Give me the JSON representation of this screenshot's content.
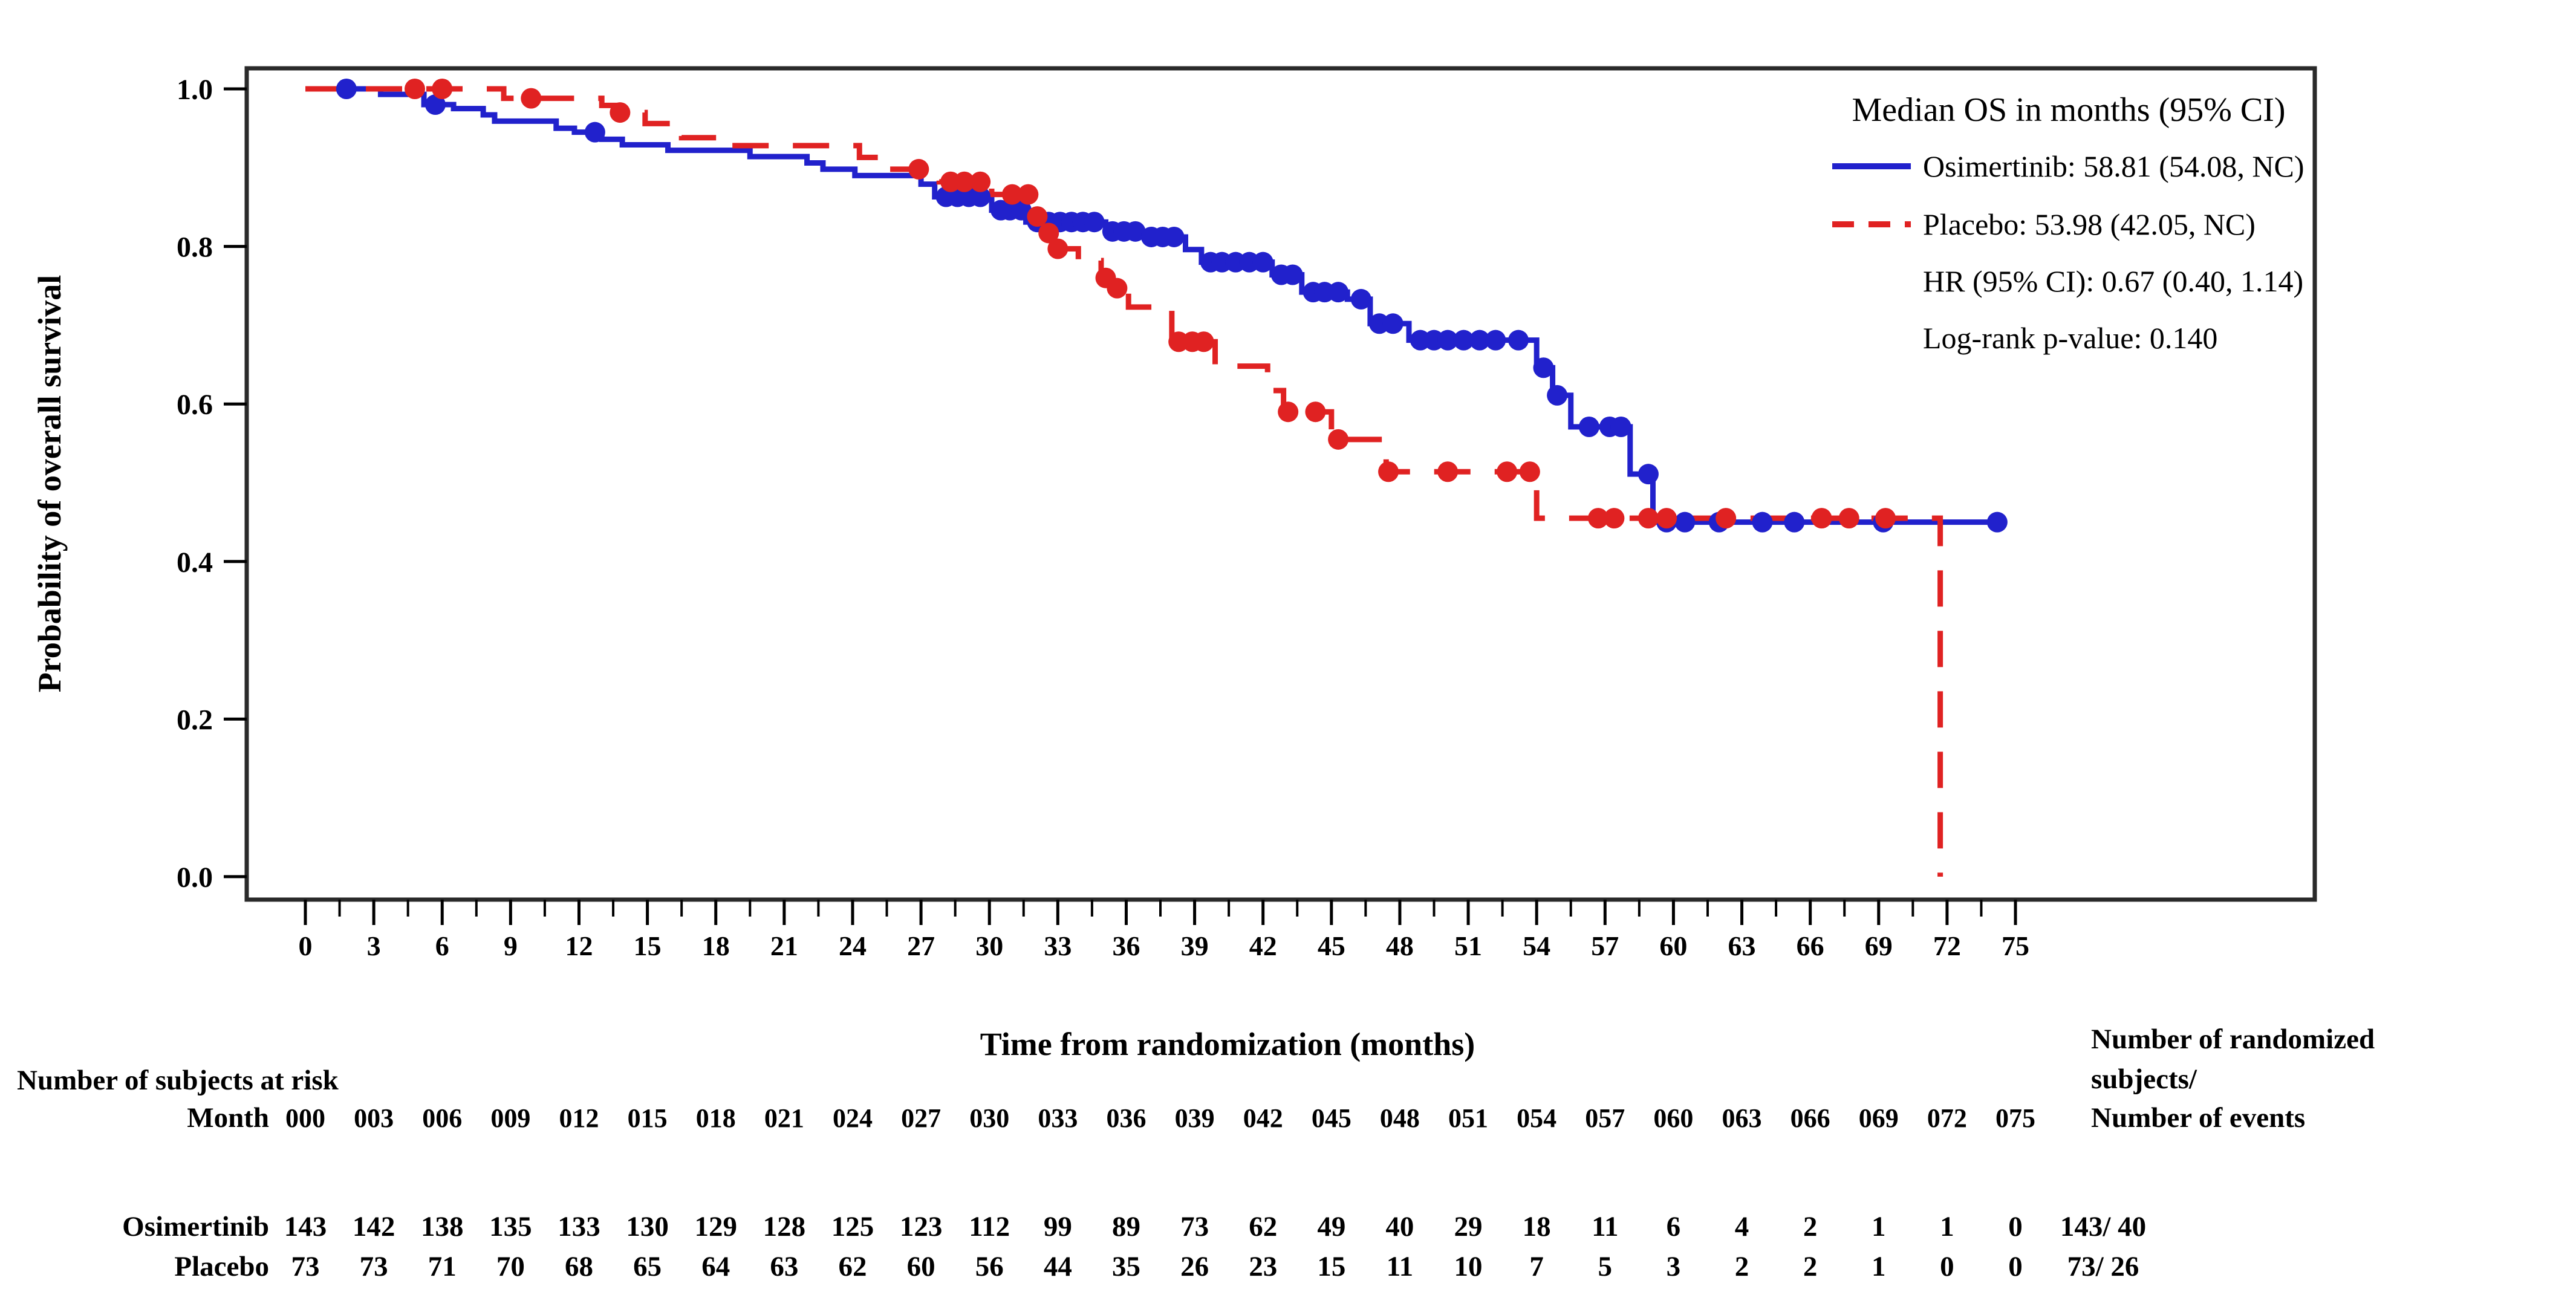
{
  "chart_data": {
    "type": "line",
    "subtype": "kaplan-meier-step",
    "legend_title": "Median OS in months (95% CI)",
    "xlabel": "Time from randomization (months)",
    "ylabel": "Probability of overall survival",
    "xlim": [
      0,
      77
    ],
    "ylim": [
      0,
      1
    ],
    "grid": false,
    "legend_position": "top-right-inside",
    "x_ticks": [
      {
        "v": 0,
        "label": "0"
      },
      {
        "v": 3,
        "label": "3"
      },
      {
        "v": 6,
        "label": "6"
      },
      {
        "v": 9,
        "label": "9"
      },
      {
        "v": 12,
        "label": "12"
      },
      {
        "v": 15,
        "label": "15"
      },
      {
        "v": 18,
        "label": "18"
      },
      {
        "v": 21,
        "label": "21"
      },
      {
        "v": 24,
        "label": "24"
      },
      {
        "v": 27,
        "label": "27"
      },
      {
        "v": 30,
        "label": "30"
      },
      {
        "v": 33,
        "label": "33"
      },
      {
        "v": 36,
        "label": "36"
      },
      {
        "v": 39,
        "label": "39"
      },
      {
        "v": 42,
        "label": "42"
      },
      {
        "v": 45,
        "label": "45"
      },
      {
        "v": 48,
        "label": "48"
      },
      {
        "v": 51,
        "label": "51"
      },
      {
        "v": 54,
        "label": "54"
      },
      {
        "v": 57,
        "label": "57"
      },
      {
        "v": 60,
        "label": "60"
      },
      {
        "v": 63,
        "label": "63"
      },
      {
        "v": 66,
        "label": "66"
      },
      {
        "v": 69,
        "label": "69"
      },
      {
        "v": 72,
        "label": "72"
      },
      {
        "v": 75,
        "label": "75"
      }
    ],
    "y_ticks": [
      {
        "v": 0.0,
        "label": "0.0"
      },
      {
        "v": 0.2,
        "label": "0.2"
      },
      {
        "v": 0.4,
        "label": "0.4"
      },
      {
        "v": 0.6,
        "label": "0.6"
      },
      {
        "v": 0.8,
        "label": "0.8"
      },
      {
        "v": 1.0,
        "label": "1.0"
      }
    ],
    "annotations": [
      "HR (95% CI): 0.67 (0.40, 1.14)",
      "Log-rank p-value: 0.140"
    ],
    "series": [
      {
        "name": "Osimertinib",
        "legend_label": "Osimertinib: 58.81 (54.08, NC)",
        "color": "#2121cc",
        "line_style": "solid",
        "end_month": 74.3,
        "drop_to_zero": false,
        "steps": [
          [
            0,
            1.0
          ],
          [
            3.3,
            0.993
          ],
          [
            5.2,
            0.98
          ],
          [
            6.5,
            0.975
          ],
          [
            7.8,
            0.967
          ],
          [
            8.3,
            0.959
          ],
          [
            11.0,
            0.95
          ],
          [
            11.8,
            0.945
          ],
          [
            13.0,
            0.936
          ],
          [
            13.9,
            0.929
          ],
          [
            15.9,
            0.922
          ],
          [
            19.5,
            0.914
          ],
          [
            22.0,
            0.906
          ],
          [
            22.7,
            0.898
          ],
          [
            24.1,
            0.89
          ],
          [
            27.0,
            0.879
          ],
          [
            27.6,
            0.863
          ],
          [
            30.1,
            0.846
          ],
          [
            31.6,
            0.831
          ],
          [
            35.1,
            0.819
          ],
          [
            36.8,
            0.812
          ],
          [
            38.6,
            0.796
          ],
          [
            39.3,
            0.78
          ],
          [
            42.4,
            0.764
          ],
          [
            43.7,
            0.742
          ],
          [
            45.7,
            0.733
          ],
          [
            46.7,
            0.702
          ],
          [
            48.4,
            0.681
          ],
          [
            54.0,
            0.646
          ],
          [
            54.7,
            0.611
          ],
          [
            55.5,
            0.571
          ],
          [
            58.1,
            0.511
          ],
          [
            59.1,
            0.45
          ]
        ],
        "censors": [
          [
            1.8,
            1.0
          ],
          [
            5.7,
            0.98
          ],
          [
            12.7,
            0.945
          ],
          [
            28.1,
            0.863
          ],
          [
            28.6,
            0.863
          ],
          [
            29.1,
            0.863
          ],
          [
            29.6,
            0.863
          ],
          [
            30.5,
            0.846
          ],
          [
            30.9,
            0.846
          ],
          [
            31.4,
            0.846
          ],
          [
            32.1,
            0.831
          ],
          [
            32.6,
            0.831
          ],
          [
            33.1,
            0.831
          ],
          [
            33.6,
            0.831
          ],
          [
            34.1,
            0.831
          ],
          [
            34.6,
            0.831
          ],
          [
            35.4,
            0.819
          ],
          [
            35.9,
            0.819
          ],
          [
            36.4,
            0.819
          ],
          [
            37.1,
            0.812
          ],
          [
            37.6,
            0.812
          ],
          [
            38.1,
            0.812
          ],
          [
            39.7,
            0.78
          ],
          [
            40.2,
            0.78
          ],
          [
            40.8,
            0.78
          ],
          [
            41.4,
            0.78
          ],
          [
            42.0,
            0.78
          ],
          [
            42.8,
            0.764
          ],
          [
            43.3,
            0.764
          ],
          [
            44.2,
            0.742
          ],
          [
            44.7,
            0.742
          ],
          [
            45.3,
            0.742
          ],
          [
            46.3,
            0.733
          ],
          [
            47.1,
            0.702
          ],
          [
            47.7,
            0.702
          ],
          [
            48.9,
            0.681
          ],
          [
            49.5,
            0.681
          ],
          [
            50.1,
            0.681
          ],
          [
            50.8,
            0.681
          ],
          [
            51.5,
            0.681
          ],
          [
            52.2,
            0.681
          ],
          [
            53.2,
            0.681
          ],
          [
            54.3,
            0.646
          ],
          [
            54.9,
            0.611
          ],
          [
            56.3,
            0.571
          ],
          [
            57.2,
            0.571
          ],
          [
            57.7,
            0.571
          ],
          [
            58.9,
            0.511
          ],
          [
            59.7,
            0.45
          ],
          [
            60.5,
            0.45
          ],
          [
            62.0,
            0.45
          ],
          [
            63.9,
            0.45
          ],
          [
            65.3,
            0.45
          ],
          [
            69.2,
            0.45
          ],
          [
            74.2,
            0.45
          ]
        ]
      },
      {
        "name": "Placebo",
        "legend_label": "Placebo: 53.98 (42.05, NC)",
        "color": "#e02222",
        "line_style": "dashed",
        "end_month": 71.7,
        "drop_to_zero": true,
        "steps": [
          [
            0,
            1.0
          ],
          [
            8.7,
            0.988
          ],
          [
            13.0,
            0.979
          ],
          [
            13.6,
            0.97
          ],
          [
            14.9,
            0.956
          ],
          [
            16.5,
            0.938
          ],
          [
            18.7,
            0.928
          ],
          [
            24.3,
            0.913
          ],
          [
            25.2,
            0.898
          ],
          [
            27.8,
            0.882
          ],
          [
            30.1,
            0.866
          ],
          [
            31.9,
            0.838
          ],
          [
            32.4,
            0.817
          ],
          [
            32.8,
            0.797
          ],
          [
            33.9,
            0.782
          ],
          [
            34.9,
            0.76
          ],
          [
            35.4,
            0.747
          ],
          [
            36.1,
            0.723
          ],
          [
            38.0,
            0.679
          ],
          [
            39.9,
            0.648
          ],
          [
            42.2,
            0.617
          ],
          [
            42.9,
            0.59
          ],
          [
            45.0,
            0.555
          ],
          [
            47.4,
            0.514
          ],
          [
            54.0,
            0.455
          ]
        ],
        "censors": [
          [
            4.8,
            1.0
          ],
          [
            6.0,
            1.0
          ],
          [
            9.9,
            0.988
          ],
          [
            13.8,
            0.97
          ],
          [
            26.9,
            0.898
          ],
          [
            28.3,
            0.882
          ],
          [
            28.9,
            0.882
          ],
          [
            29.6,
            0.882
          ],
          [
            31.0,
            0.866
          ],
          [
            31.7,
            0.866
          ],
          [
            32.1,
            0.838
          ],
          [
            32.6,
            0.817
          ],
          [
            33.0,
            0.797
          ],
          [
            35.1,
            0.76
          ],
          [
            35.6,
            0.747
          ],
          [
            38.3,
            0.679
          ],
          [
            38.9,
            0.679
          ],
          [
            39.4,
            0.679
          ],
          [
            43.1,
            0.59
          ],
          [
            44.3,
            0.59
          ],
          [
            45.3,
            0.555
          ],
          [
            47.5,
            0.514
          ],
          [
            50.1,
            0.514
          ],
          [
            52.7,
            0.514
          ],
          [
            53.7,
            0.514
          ],
          [
            56.7,
            0.455
          ],
          [
            57.4,
            0.455
          ],
          [
            58.9,
            0.455
          ],
          [
            59.7,
            0.455
          ],
          [
            62.3,
            0.455
          ],
          [
            66.5,
            0.455
          ],
          [
            67.7,
            0.455
          ],
          [
            69.3,
            0.455
          ]
        ]
      }
    ]
  },
  "risk_table": {
    "header": "Number of subjects at risk",
    "month_label": "Month",
    "months": [
      "000",
      "003",
      "006",
      "009",
      "012",
      "015",
      "018",
      "021",
      "024",
      "027",
      "030",
      "033",
      "036",
      "039",
      "042",
      "045",
      "048",
      "051",
      "054",
      "057",
      "060",
      "063",
      "066",
      "069",
      "072",
      "075"
    ],
    "right_header_lines": [
      "Number of randomized",
      "subjects/",
      "Number of events"
    ],
    "rows": [
      {
        "label": "Osimertinib",
        "values": [
          143,
          142,
          138,
          135,
          133,
          130,
          129,
          128,
          125,
          123,
          112,
          99,
          89,
          73,
          62,
          49,
          40,
          29,
          18,
          11,
          6,
          4,
          2,
          1,
          1,
          0
        ],
        "summary": "143/ 40"
      },
      {
        "label": "Placebo",
        "values": [
          73,
          73,
          71,
          70,
          68,
          65,
          64,
          63,
          62,
          60,
          56,
          44,
          35,
          26,
          23,
          15,
          11,
          10,
          7,
          5,
          3,
          2,
          2,
          1,
          0,
          0
        ],
        "summary": "73/ 26"
      }
    ]
  }
}
